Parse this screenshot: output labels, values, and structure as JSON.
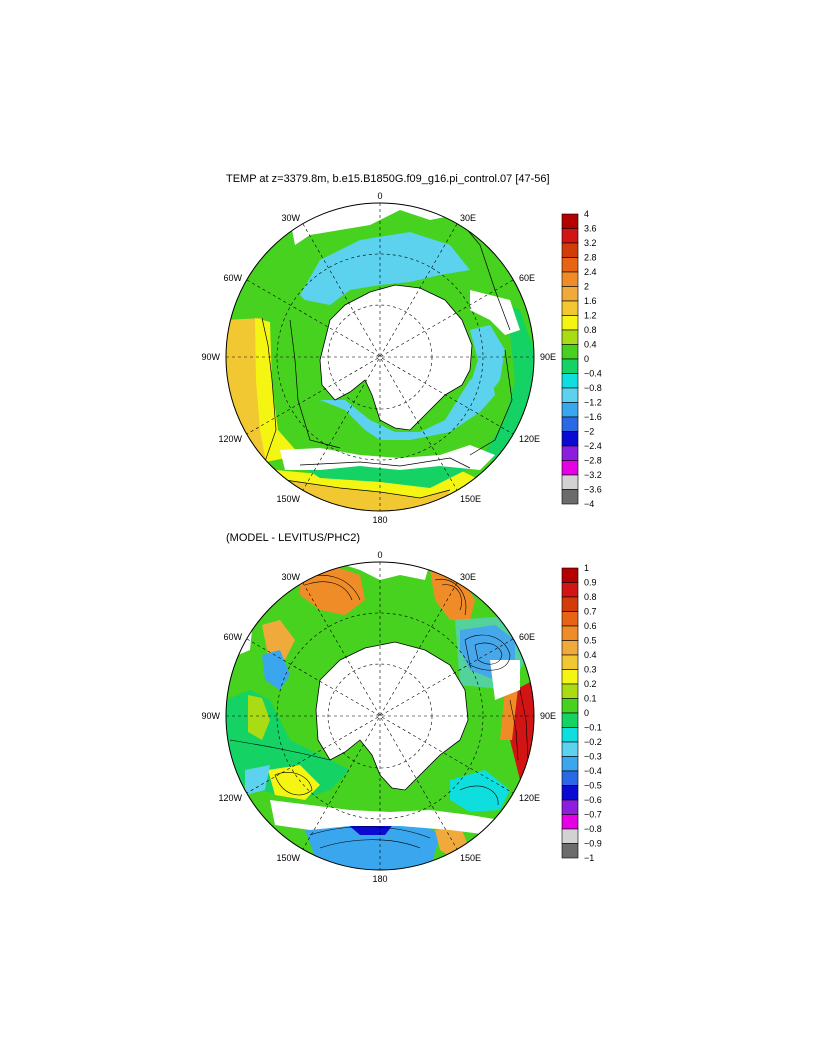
{
  "palette": [
    "#6b6b6b",
    "#d2d2d2",
    "#e600e6",
    "#8c1ee0",
    "#0a0ad2",
    "#2a68e6",
    "#3aa6ee",
    "#5cd2ee",
    "#0fdede",
    "#14d264",
    "#46d21e",
    "#aadc14",
    "#f5f514",
    "#f2c832",
    "#f0aa3c",
    "#f08c28",
    "#e66414",
    "#d23c0a",
    "#d21414",
    "#b40000"
  ],
  "land_color": "#ffffff",
  "panels": [
    {
      "id": "top",
      "title": "TEMP at z=3379.8m, b.e15.B1850G.f09_g16.pi_control.07 [47-56]",
      "lon_labels": {
        "deg0": "0",
        "e30": "30E",
        "e60": "60E",
        "e90": "90E",
        "e120": "120E",
        "e150": "150E",
        "deg180": "180",
        "w150": "150W",
        "w120": "120W",
        "w90": "90W",
        "w60": "60W",
        "w30": "30W"
      },
      "colorbar": {
        "labels": [
          "4",
          "3.6",
          "3.2",
          "2.8",
          "2.4",
          "2",
          "1.6",
          "1.2",
          "0.8",
          "0.4",
          "0",
          "−0.4",
          "−0.8",
          "−1.2",
          "−1.6",
          "−2",
          "−2.4",
          "−2.8",
          "−3.2",
          "−3.6",
          "−4"
        ],
        "colors_top_to_bottom": [
          19,
          18,
          17,
          16,
          15,
          14,
          13,
          12,
          11,
          10,
          9,
          8,
          7,
          6,
          5,
          4,
          3,
          2,
          1,
          0
        ]
      }
    },
    {
      "id": "bottom",
      "title": "(MODEL - LEVITUS/PHC2)",
      "lon_labels": {
        "deg0": "0",
        "e30": "30E",
        "e60": "60E",
        "e90": "90E",
        "e120": "120E",
        "e150": "150E",
        "deg180": "180",
        "w150": "150W",
        "w120": "120W",
        "w90": "90W",
        "w60": "60W",
        "w30": "30W"
      },
      "colorbar": {
        "labels": [
          "1",
          "0.9",
          "0.8",
          "0.7",
          "0.6",
          "0.5",
          "0.4",
          "0.3",
          "0.2",
          "0.1",
          "0",
          "−0.1",
          "−0.2",
          "−0.3",
          "−0.4",
          "−0.5",
          "−0.6",
          "−0.7",
          "−0.8",
          "−0.9",
          "−1"
        ],
        "colors_top_to_bottom": [
          19,
          18,
          17,
          16,
          15,
          14,
          13,
          12,
          11,
          10,
          9,
          8,
          7,
          6,
          5,
          4,
          3,
          2,
          1,
          0
        ]
      }
    }
  ],
  "chart_data": [
    {
      "type": "heatmap",
      "title": "TEMP at z=3379.8m, b.e15.B1850G.f09_g16.pi_control.07 [47-56]",
      "projection": "south-polar-stereographic",
      "longitude_labels": [
        "0",
        "30E",
        "60E",
        "90E",
        "120E",
        "150E",
        "180",
        "150W",
        "120W",
        "90W",
        "60W",
        "30W"
      ],
      "levels": [
        -4,
        -3.6,
        -3.2,
        -2.8,
        -2.4,
        -2,
        -1.6,
        -1.2,
        -0.8,
        -0.4,
        0,
        0.4,
        0.8,
        1.2,
        1.6,
        2,
        2.4,
        2.8,
        3.2,
        3.6,
        4
      ],
      "regions": [
        {
          "sector": "90W",
          "value_range": [
            1.2,
            1.6
          ]
        },
        {
          "sector": "120W",
          "value_range": [
            0.8,
            1.6
          ]
        },
        {
          "sector": "150W-180",
          "value_range": [
            0.4,
            1.2
          ]
        },
        {
          "sector": "180-150E",
          "value_range": [
            0.4,
            0.8
          ]
        },
        {
          "sector": "near Antarctica",
          "value_range": [
            -0.8,
            -0.4
          ]
        },
        {
          "sector": "0-60E",
          "value_range": [
            -0.8,
            0
          ]
        },
        {
          "sector": "60E-120E",
          "value_range": [
            0,
            0.4
          ]
        }
      ]
    },
    {
      "type": "heatmap",
      "title": "(MODEL - LEVITUS/PHC2)",
      "projection": "south-polar-stereographic",
      "longitude_labels": [
        "0",
        "30E",
        "60E",
        "90E",
        "120E",
        "150E",
        "180",
        "150W",
        "120W",
        "90W",
        "60W",
        "30W"
      ],
      "levels": [
        -1,
        -0.9,
        -0.8,
        -0.7,
        -0.6,
        -0.5,
        -0.4,
        -0.3,
        -0.2,
        -0.1,
        0,
        0.1,
        0.2,
        0.3,
        0.4,
        0.5,
        0.6,
        0.7,
        0.8,
        0.9,
        1
      ],
      "regions": [
        {
          "sector": "90W-120W",
          "value_range": [
            0,
            0.2
          ]
        },
        {
          "sector": "30W",
          "value_range": [
            0.3,
            0.6
          ]
        },
        {
          "sector": "30E",
          "value_range": [
            0.3,
            0.7
          ]
        },
        {
          "sector": "60E",
          "value_range": [
            -0.5,
            -0.2
          ]
        },
        {
          "sector": "90E",
          "value_range": [
            0.6,
            1.0
          ]
        },
        {
          "sector": "180",
          "value_range": [
            -0.5,
            -0.3
          ]
        },
        {
          "sector": "150E",
          "value_range": [
            0.3,
            0.6
          ]
        }
      ]
    }
  ]
}
